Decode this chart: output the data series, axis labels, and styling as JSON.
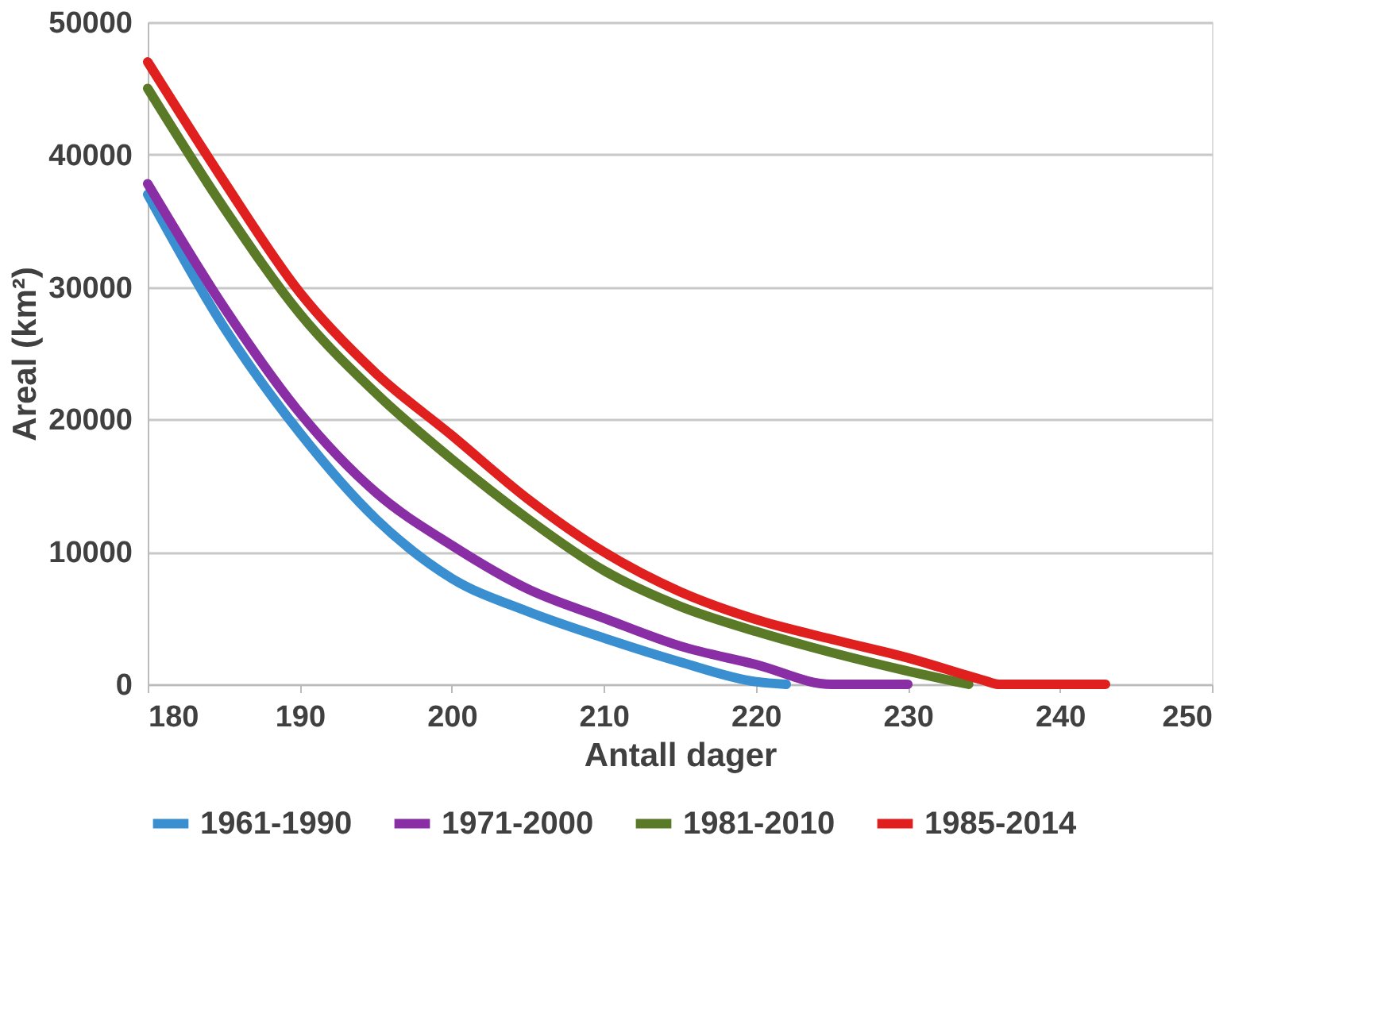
{
  "chart_data": {
    "type": "line",
    "xlabel": "Antall dager",
    "ylabel": "Areal (km²)",
    "xlim": [
      180,
      250
    ],
    "xticks": [
      180,
      190,
      200,
      210,
      220,
      230,
      240,
      250
    ],
    "ylim": [
      0,
      50000
    ],
    "yticks": [
      0,
      10000,
      20000,
      30000,
      40000,
      50000
    ],
    "grid": "y",
    "legend": "bottom",
    "line_style": "solid",
    "marker": "none",
    "series": [
      {
        "name": "1961-1990",
        "color": "#3a8fd0",
        "x": [
          180,
          185,
          190,
          195,
          200,
          205,
          210,
          215,
          220,
          222
        ],
        "values": [
          37000,
          27000,
          19000,
          12500,
          8000,
          5500,
          3500,
          1700,
          200,
          0
        ]
      },
      {
        "name": "1971-2000",
        "color": "#8a2ea6",
        "x": [
          180,
          185,
          190,
          195,
          200,
          205,
          210,
          215,
          220,
          225,
          230
        ],
        "values": [
          37800,
          28500,
          20500,
          14500,
          10500,
          7200,
          5000,
          2900,
          1500,
          0,
          0
        ]
      },
      {
        "name": "1981-2010",
        "color": "#5a7a28",
        "x": [
          180,
          185,
          190,
          195,
          200,
          205,
          210,
          215,
          220,
          225,
          230,
          234
        ],
        "values": [
          45000,
          36000,
          28000,
          22000,
          17000,
          12500,
          8600,
          5900,
          4000,
          2400,
          1000,
          0
        ]
      },
      {
        "name": "1985-2014",
        "color": "#e0201e",
        "x": [
          180,
          185,
          190,
          195,
          200,
          205,
          210,
          215,
          220,
          225,
          230,
          235,
          236,
          243
        ],
        "values": [
          47000,
          38000,
          29600,
          23500,
          18800,
          14000,
          10000,
          7000,
          4900,
          3400,
          2000,
          300,
          0,
          0
        ]
      }
    ]
  }
}
